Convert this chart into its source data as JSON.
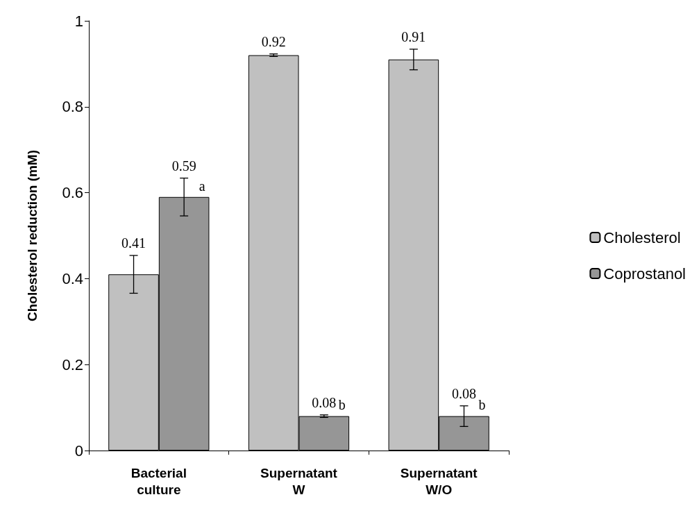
{
  "chart_data": {
    "type": "bar",
    "ylabel": "Cholesterol reduction (mM)",
    "categories": [
      "Bacterial\nculture",
      "Supernatant\nW",
      "Supernatant\nW/O"
    ],
    "series": [
      {
        "name": "Cholesterol",
        "color": "#c0c0c0",
        "values": [
          0.41,
          0.92,
          0.91
        ],
        "errors": [
          0.044,
          0.003,
          0.024
        ]
      },
      {
        "name": "Coprostanol",
        "color": "#969696",
        "values": [
          0.59,
          0.08,
          0.08
        ],
        "errors": [
          0.044,
          0.003,
          0.024
        ]
      }
    ],
    "ylim": [
      0,
      1
    ],
    "yticks": [
      0,
      0.2,
      0.4,
      0.6,
      0.8,
      1
    ],
    "grid": false,
    "legend": "right",
    "data_labels": true,
    "annotations": [
      {
        "text": "a",
        "x": "Bacterial\nculture",
        "y": 0.59
      },
      {
        "text": "b",
        "x": "Supernatant\nW",
        "y": 0.08
      },
      {
        "text": "b",
        "x": "Supernatant\nW/O",
        "y": 0.08
      }
    ]
  }
}
